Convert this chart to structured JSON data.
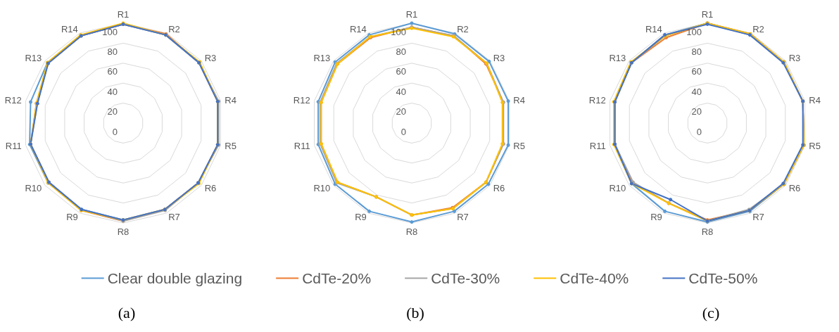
{
  "chart_data": [
    {
      "type": "radar",
      "title": "(a)",
      "categories": [
        "R1",
        "R2",
        "R3",
        "R4",
        "R5",
        "R6",
        "R7",
        "R8",
        "R9",
        "R10",
        "R11",
        "R12",
        "R13",
        "R14"
      ],
      "ylim": [
        0,
        100
      ],
      "yticks": [
        0,
        20,
        40,
        60,
        80,
        100
      ],
      "grid": true,
      "marker": "circle",
      "legend": "bottom",
      "series": [
        {
          "name": "Clear double glazing",
          "color": "#5b9bd5",
          "values": [
            99,
            98,
            97,
            97,
            97,
            96,
            96,
            97,
            96,
            96,
            96,
            95,
            97,
            97
          ]
        },
        {
          "name": "CdTe-20%",
          "color": "#ed7d31",
          "values": [
            99,
            99,
            97,
            97,
            97,
            96,
            96,
            98,
            97,
            95,
            95,
            89,
            96,
            97
          ]
        },
        {
          "name": "CdTe-30%",
          "color": "#a5a5a5",
          "values": [
            99,
            98,
            97,
            98,
            98,
            96,
            97,
            98,
            96,
            95,
            95,
            88,
            96,
            97
          ]
        },
        {
          "name": "CdTe-40%",
          "color": "#ffc000",
          "values": [
            100,
            98,
            98,
            97,
            97,
            97,
            96,
            97,
            97,
            96,
            95,
            89,
            97,
            98
          ]
        },
        {
          "name": "CdTe-50%",
          "color": "#4472c4",
          "values": [
            99,
            98,
            97,
            97,
            97,
            96,
            96,
            97,
            96,
            95,
            95,
            88,
            96,
            97
          ]
        }
      ]
    },
    {
      "type": "radar",
      "title": "(b)",
      "categories": [
        "R1",
        "R2",
        "R3",
        "R4",
        "R5",
        "R6",
        "R7",
        "R8",
        "R9",
        "R10",
        "R11",
        "R12",
        "R13",
        "R14"
      ],
      "ylim": [
        0,
        100
      ],
      "yticks": [
        0,
        20,
        40,
        60,
        80,
        100
      ],
      "grid": true,
      "marker": "circle",
      "series": [
        {
          "color": "#5b9bd5",
          "values": [
            100,
            99,
            99,
            99,
            99,
            98,
            98,
            99,
            98,
            98,
            96,
            96,
            98,
            98
          ]
        },
        {
          "color": "#ed7d31",
          "values": [
            96,
            97,
            95,
            94,
            94,
            95,
            94,
            92,
            82,
            95,
            93,
            93,
            95,
            95
          ]
        },
        {
          "color": "#a5a5a5",
          "values": [
            96,
            97,
            96,
            94,
            94,
            95,
            95,
            92,
            82,
            96,
            94,
            94,
            96,
            96
          ]
        },
        {
          "color": "#ffc000",
          "values": [
            95,
            96,
            96,
            93,
            93,
            95,
            95,
            92,
            82,
            95,
            93,
            93,
            95,
            96
          ]
        }
      ]
    },
    {
      "type": "radar",
      "title": "(c)",
      "categories": [
        "R1",
        "R2",
        "R3",
        "R4",
        "R5",
        "R6",
        "R7",
        "R8",
        "R9",
        "R10",
        "R11",
        "R12",
        "R13",
        "R14"
      ],
      "ylim": [
        0,
        100
      ],
      "yticks": [
        0,
        20,
        40,
        60,
        80,
        100
      ],
      "grid": true,
      "marker": "circle",
      "series": [
        {
          "color": "#5b9bd5",
          "values": [
            100,
            98,
            98,
            98,
            99,
            98,
            98,
            99,
            98,
            97,
            95,
            95,
            97,
            98
          ]
        },
        {
          "color": "#ed7d31",
          "values": [
            100,
            99,
            98,
            98,
            99,
            98,
            97,
            97,
            89,
            96,
            95,
            95,
            97,
            95
          ]
        },
        {
          "color": "#a5a5a5",
          "values": [
            100,
            99,
            98,
            98,
            99,
            98,
            96,
            98,
            89,
            95,
            95,
            95,
            97,
            97
          ]
        },
        {
          "color": "#ffc000",
          "values": [
            100,
            99,
            98,
            98,
            99,
            98,
            97,
            98,
            89,
            97,
            96,
            96,
            98,
            97
          ]
        },
        {
          "color": "#4472c4",
          "values": [
            99,
            98,
            97,
            98,
            98,
            97,
            97,
            98,
            85,
            97,
            95,
            95,
            97,
            98
          ]
        }
      ]
    }
  ]
}
